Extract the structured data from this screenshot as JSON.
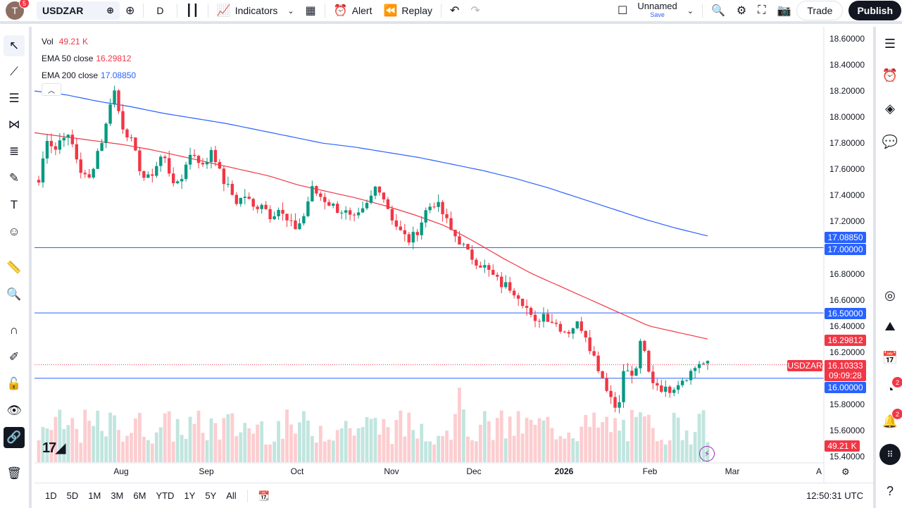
{
  "topbar": {
    "avatar_letter": "T",
    "avatar_badge": "5",
    "symbol": "USDZAR",
    "interval": "D",
    "indicators_label": "Indicators",
    "alert_label": "Alert",
    "replay_label": "Replay",
    "layout_name": "Unnamed",
    "save_label": "Save",
    "trade_label": "Trade",
    "publish_label": "Publish"
  },
  "legend": {
    "vol_label": "Vol",
    "vol_value": "49.21 K",
    "ema50_label": "EMA 50 close",
    "ema50_value": "16.29812",
    "ema200_label": "EMA 200 close",
    "ema200_value": "17.08850"
  },
  "price_axis": [
    "18.60000",
    "18.40000",
    "18.20000",
    "18.00000",
    "17.80000",
    "17.60000",
    "17.40000",
    "17.20000",
    "16.80000",
    "16.60000",
    "16.40000",
    "16.20000",
    "15.80000",
    "15.60000",
    "15.40000"
  ],
  "price_tags": {
    "ema200": "17.08850",
    "level_17": "17.00000",
    "level_165": "16.50000",
    "ema50": "16.29812",
    "symbol_label": "USDZAR",
    "last": "16.10333",
    "countdown": "09:09:28",
    "level_16": "16.00000",
    "volume": "49.21 K"
  },
  "time_axis": [
    "Aug",
    "Sep",
    "Oct",
    "Nov",
    "Dec",
    "2026",
    "Feb",
    "Mar",
    "A"
  ],
  "bottombar": {
    "ranges": [
      "1D",
      "5D",
      "1M",
      "3M",
      "6M",
      "YTD",
      "1Y",
      "5Y",
      "All"
    ],
    "clock": "12:50:31 UTC"
  },
  "right_badges": {
    "news": "2",
    "alerts": "2"
  },
  "colors": {
    "up": "#089981",
    "down": "#f23645",
    "ema50": "#f23645",
    "ema200": "#2962ff",
    "level": "#2962ff"
  },
  "chart_data": {
    "type": "candlestick",
    "symbol": "USDZAR",
    "interval": "D",
    "ylim": [
      15.4,
      18.6
    ],
    "horizontal_levels": [
      17.0,
      16.5,
      16.0
    ],
    "last_price": 16.10333,
    "close_path": [
      17.5,
      17.85,
      17.75,
      17.88,
      17.8,
      17.6,
      17.5,
      17.72,
      17.88,
      18.25,
      17.95,
      17.85,
      17.65,
      17.5,
      17.6,
      17.72,
      17.55,
      17.45,
      17.7,
      17.72,
      17.6,
      17.78,
      17.55,
      17.45,
      17.35,
      17.4,
      17.3,
      17.35,
      17.25,
      17.3,
      17.2,
      17.15,
      17.22,
      17.45,
      17.4,
      17.35,
      17.3,
      17.28,
      17.2,
      17.25,
      17.35,
      17.5,
      17.35,
      17.2,
      17.1,
      17.05,
      17.15,
      17.3,
      17.35,
      17.25,
      17.12,
      17.05,
      16.95,
      16.9,
      16.85,
      16.78,
      16.72,
      16.7,
      16.65,
      16.55,
      16.4,
      16.5,
      16.45,
      16.4,
      16.35,
      16.42,
      16.38,
      16.2,
      16.05,
      15.9,
      15.75,
      16.1,
      15.98,
      16.3,
      16.0,
      15.95,
      15.9,
      15.95,
      16.0,
      16.05,
      16.12,
      16.1
    ],
    "ema50_path": [
      17.88,
      17.85,
      17.82,
      17.79,
      17.75,
      17.7,
      17.65,
      17.6,
      17.55,
      17.48,
      17.43,
      17.38,
      17.32,
      17.25,
      17.17,
      17.05,
      16.92,
      16.8,
      16.7,
      16.6,
      16.5,
      16.4,
      16.35,
      16.3
    ],
    "ema200_path": [
      18.2,
      18.17,
      18.12,
      18.08,
      18.03,
      17.99,
      17.95,
      17.9,
      17.85,
      17.8,
      17.77,
      17.73,
      17.69,
      17.64,
      17.59,
      17.53,
      17.46,
      17.38,
      17.3,
      17.22,
      17.15,
      17.09
    ],
    "volume_axis_label": "49.21 K"
  }
}
